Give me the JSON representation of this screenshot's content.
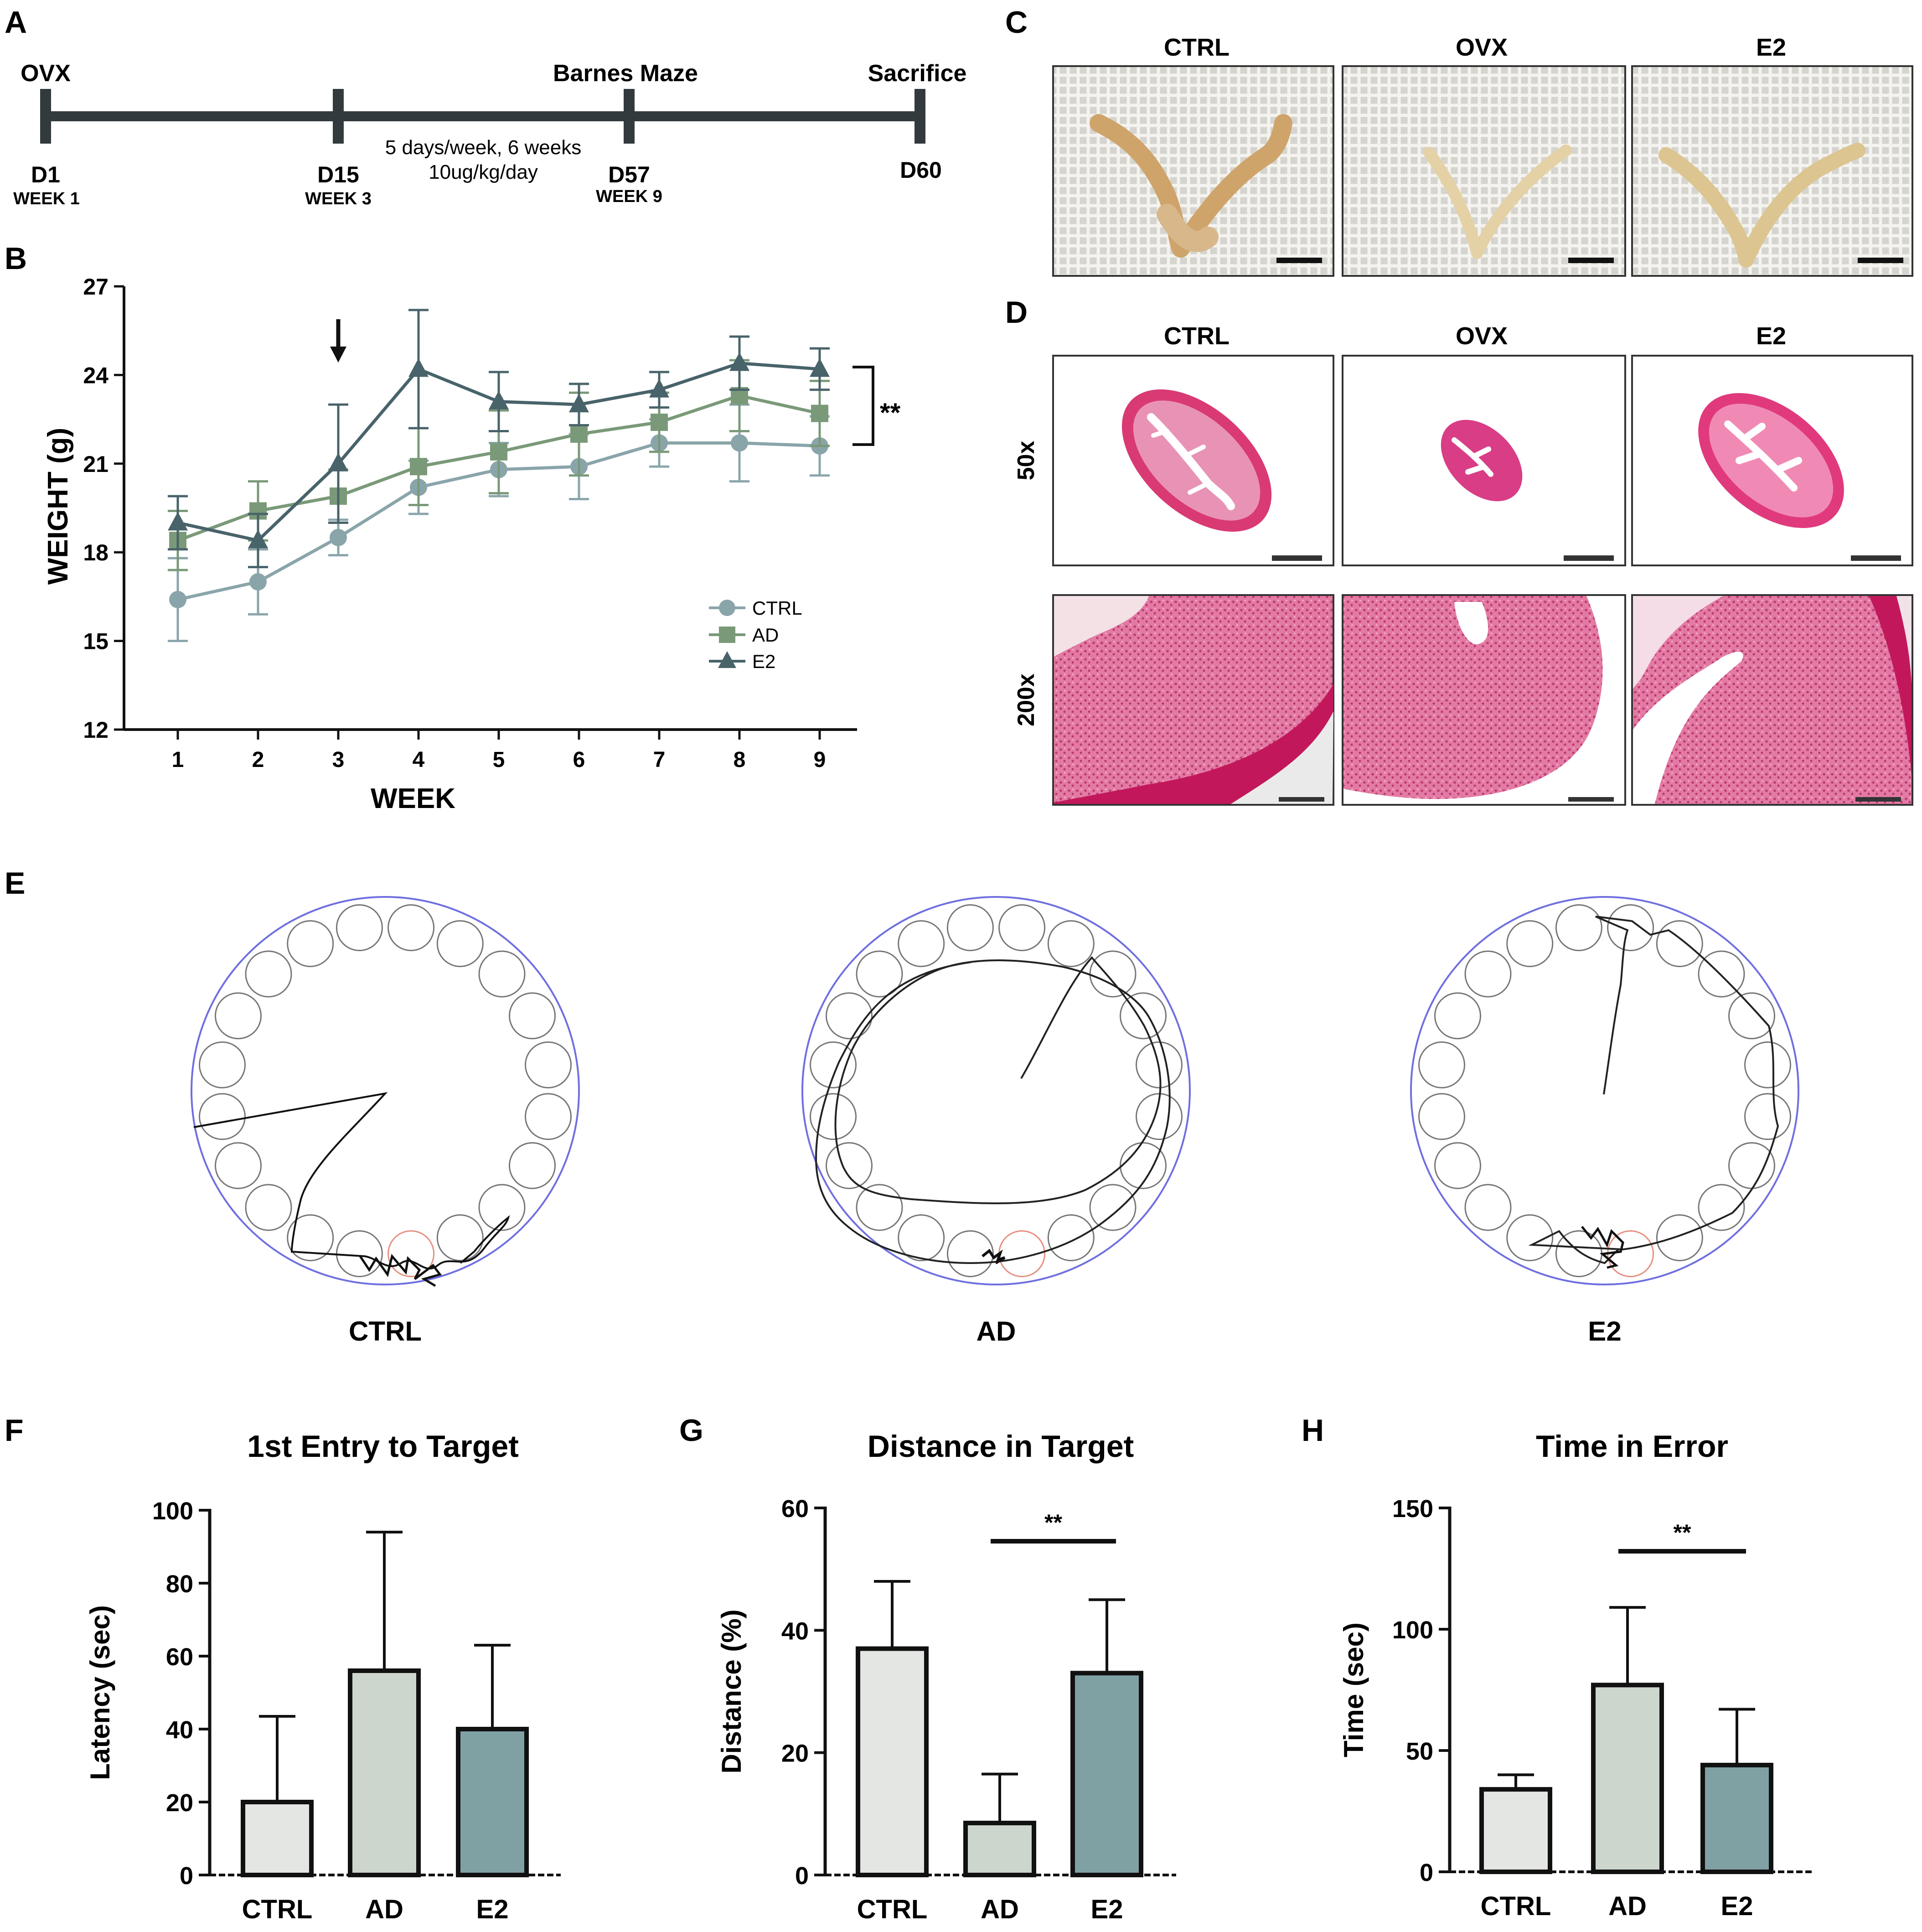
{
  "panels": {
    "A": "A",
    "B": "B",
    "C": "C",
    "D": "D",
    "E": "E",
    "F": "F",
    "G": "G",
    "H": "H"
  },
  "timeline": {
    "top_labels": [
      "OVX",
      "Barnes Maze",
      "Sacrifice"
    ],
    "days": [
      "D1",
      "D15",
      "D57",
      "D60"
    ],
    "weeks": [
      "WEEK 1",
      "WEEK 3",
      "WEEK 9"
    ],
    "note_line1": "5 days/week, 6 weeks",
    "note_line2": "10ug/kg/day"
  },
  "photo_panels": {
    "c_titles": [
      "CTRL",
      "OVX",
      "E2"
    ],
    "d_titles": [
      "CTRL",
      "OVX",
      "E2"
    ],
    "d_row_labels": [
      "50x",
      "200x"
    ]
  },
  "maze": {
    "labels": [
      "CTRL",
      "AD",
      "E2"
    ]
  },
  "colors": {
    "ctrl": "#8aa5aa",
    "ad": "#7a9978",
    "e2": "#48636a",
    "bar_ctrl": "#e3e6e2",
    "bar_ad": "#cdd6cc",
    "bar_e2": "#7fa1a4",
    "tissue": "#d93a73",
    "tissue_light": "#ef7aa6"
  },
  "chart_data": [
    {
      "id": "B",
      "type": "line",
      "title": "",
      "xlabel": "WEEK",
      "ylabel": "WEIGHT (g)",
      "x": [
        1,
        2,
        3,
        4,
        5,
        6,
        7,
        8,
        9
      ],
      "ylim": [
        12,
        27
      ],
      "yticks": [
        12,
        15,
        18,
        21,
        24,
        27
      ],
      "series": [
        {
          "name": "CTRL",
          "marker": "circle",
          "values": [
            16.4,
            17.0,
            18.5,
            20.2,
            20.8,
            20.9,
            21.7,
            21.7,
            21.6
          ],
          "err": [
            1.4,
            1.1,
            0.6,
            0.9,
            0.9,
            1.1,
            0.8,
            1.3,
            1.0
          ]
        },
        {
          "name": "AD",
          "marker": "square",
          "values": [
            18.4,
            19.4,
            19.9,
            20.9,
            21.4,
            22.0,
            22.4,
            23.3,
            22.7
          ],
          "err": [
            1.0,
            1.0,
            0.9,
            1.3,
            1.4,
            1.4,
            1.0,
            1.2,
            1.1
          ]
        },
        {
          "name": "E2",
          "marker": "triangle",
          "values": [
            19.0,
            18.4,
            21.0,
            24.2,
            23.1,
            23.0,
            23.5,
            24.4,
            24.2
          ],
          "err": [
            0.9,
            0.9,
            2.0,
            2.0,
            1.0,
            0.7,
            0.6,
            0.9,
            0.7
          ]
        }
      ],
      "arrow_at_week": 3,
      "significance": "**"
    },
    {
      "id": "F",
      "type": "bar",
      "title": "1st Entry to Target",
      "ylabel": "Latency (sec)",
      "categories": [
        "CTRL",
        "AD",
        "E2"
      ],
      "values": [
        20,
        56,
        40
      ],
      "err": [
        23.5,
        38,
        23
      ],
      "ylim": [
        0,
        100
      ],
      "yticks": [
        0,
        20,
        40,
        60,
        80,
        100
      ]
    },
    {
      "id": "G",
      "type": "bar",
      "title": "Distance in Target",
      "ylabel": "Distance (%)",
      "categories": [
        "CTRL",
        "AD",
        "E2"
      ],
      "values": [
        37,
        8.5,
        33
      ],
      "err": [
        11,
        8,
        12
      ],
      "ylim": [
        0,
        60
      ],
      "yticks": [
        0,
        20,
        40,
        60
      ],
      "significance": "**"
    },
    {
      "id": "H",
      "type": "bar",
      "title": "Time in Error",
      "ylabel": "Time (sec)",
      "categories": [
        "CTRL",
        "AD",
        "E2"
      ],
      "values": [
        34,
        77,
        44
      ],
      "err": [
        6,
        32,
        23
      ],
      "ylim": [
        0,
        150
      ],
      "yticks": [
        0,
        50,
        100,
        150
      ],
      "significance": "**"
    }
  ]
}
